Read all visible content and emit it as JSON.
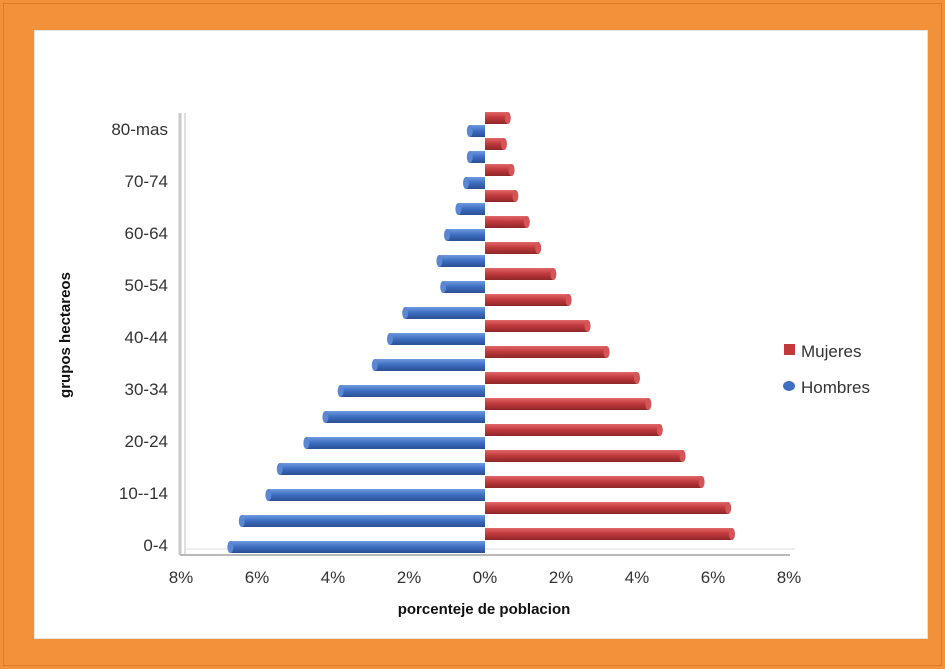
{
  "chart_data": {
    "type": "bar",
    "orientation": "horizontal",
    "chart_style": "population-pyramid",
    "xlabel": "porcenteje de poblacion",
    "ylabel": "grupos hectareos",
    "xlim": [
      -8,
      8
    ],
    "x_ticks": [
      "8%",
      "6%",
      "4%",
      "2%",
      "0%",
      "2%",
      "4%",
      "6%",
      "8%"
    ],
    "y_tick_labels": [
      "0-4",
      "10--14",
      "20-24",
      "30-34",
      "40-44",
      "50-54",
      "60-64",
      "70-74",
      "80-mas"
    ],
    "categories_count": 17,
    "legend_position": "right",
    "series": [
      {
        "name": "Mujeres",
        "color": "#c0393b",
        "values": [
          6.5,
          6.4,
          5.7,
          5.2,
          4.6,
          4.3,
          4.0,
          3.2,
          2.7,
          2.2,
          1.8,
          1.4,
          1.1,
          0.8,
          0.7,
          0.5,
          0.6
        ]
      },
      {
        "name": "Hombres",
        "color": "#3e6fc1",
        "values": [
          -6.7,
          -6.4,
          -5.7,
          -5.4,
          -4.7,
          -4.2,
          -3.8,
          -2.9,
          -2.5,
          -2.1,
          -1.1,
          -1.2,
          -1.0,
          -0.7,
          -0.5,
          -0.4,
          -0.4
        ]
      }
    ],
    "grid": false
  }
}
